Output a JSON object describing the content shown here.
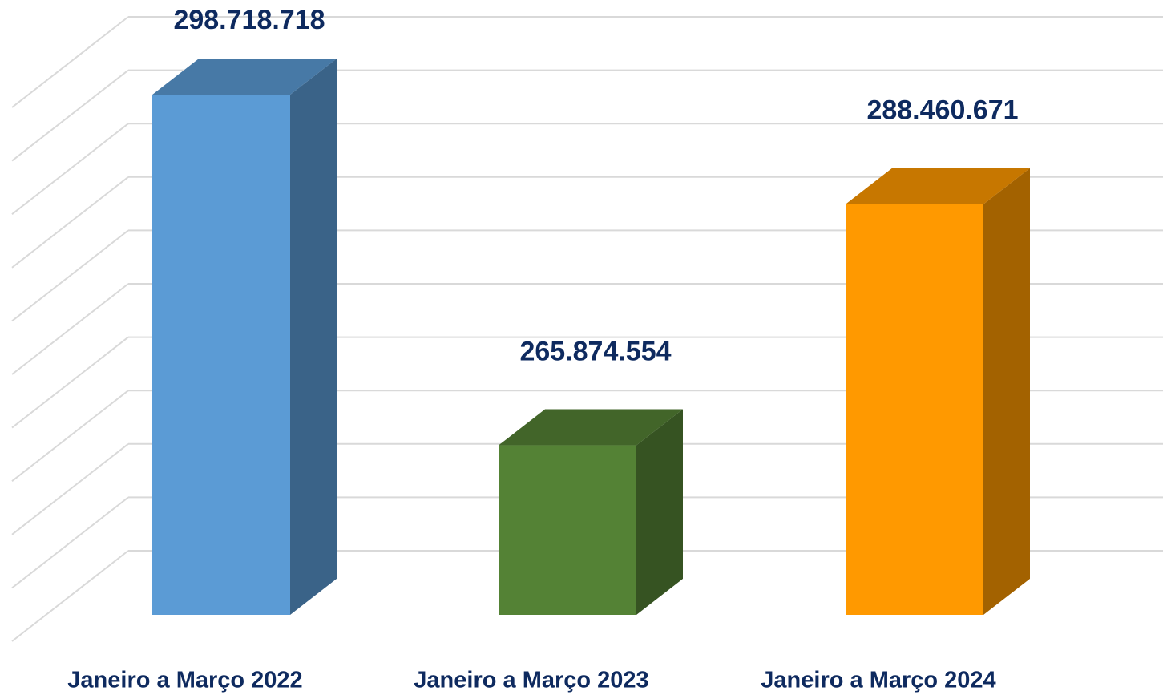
{
  "chart_data": {
    "type": "bar3d",
    "categories": [
      "Janeiro a Março 2022",
      "Janeiro a Março 2023",
      "Janeiro a Março 2024"
    ],
    "values": [
      298718718,
      265874554,
      288460671
    ],
    "value_labels": [
      "298.718.718",
      "265.874.554",
      "288.460.671"
    ],
    "colors": [
      "#5b9bd5",
      "#548235",
      "#ff9900"
    ],
    "ylim": [
      250000000,
      300000000
    ],
    "yticks": [
      250000000,
      255000000,
      260000000,
      265000000,
      270000000,
      275000000,
      280000000,
      285000000,
      290000000,
      295000000,
      300000000
    ],
    "grid": true
  }
}
